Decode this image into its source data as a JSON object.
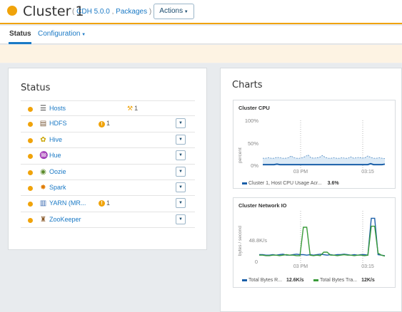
{
  "header": {
    "title": "Cluster 1",
    "subtitle_open": "(",
    "version": "CDH 5.0.0",
    "sep": " , ",
    "packaging": "Packages",
    "subtitle_close": " )",
    "actions_label": "Actions"
  },
  "tabs": {
    "status": "Status",
    "configuration": "Configuration"
  },
  "status_panel": {
    "title": "Status",
    "services": [
      {
        "name": "Hosts",
        "icon": "hosts-icon",
        "health": "1",
        "health_kind": "wrench-icon",
        "has_dropdown": false
      },
      {
        "name": "HDFS",
        "icon": "hdfs-icon",
        "health": "1",
        "health_kind": "warning-icon",
        "has_dropdown": true
      },
      {
        "name": "Hive",
        "icon": "hive-icon",
        "health": "",
        "health_kind": "",
        "has_dropdown": true
      },
      {
        "name": "Hue",
        "icon": "hue-icon",
        "health": "",
        "health_kind": "",
        "has_dropdown": true
      },
      {
        "name": "Oozie",
        "icon": "oozie-icon",
        "health": "",
        "health_kind": "",
        "has_dropdown": true
      },
      {
        "name": "Spark",
        "icon": "spark-icon",
        "health": "",
        "health_kind": "",
        "has_dropdown": true
      },
      {
        "name": "YARN (MR...",
        "icon": "yarn-icon",
        "health": "1",
        "health_kind": "warning-icon",
        "has_dropdown": true
      },
      {
        "name": "ZooKeeper",
        "icon": "zookeeper-icon",
        "health": "",
        "health_kind": "",
        "has_dropdown": true
      }
    ]
  },
  "charts_panel": {
    "title": "Charts",
    "cpu_chart": {
      "title": "Cluster CPU",
      "ylabel": "percent",
      "yticks": [
        "100%",
        "50%",
        "0%"
      ],
      "xticks": [
        "03 PM",
        "03:15"
      ],
      "legend": [
        {
          "label": "Cluster 1, Host CPU Usage Acr...",
          "value": "3.6%",
          "color": "#1a5fa8"
        }
      ]
    },
    "net_chart": {
      "title": "Cluster Network IO",
      "ylabel": "bytes / second",
      "yticks": [
        "48.8K/s",
        "0"
      ],
      "xticks": [
        "03 PM",
        "03:15"
      ],
      "legend": [
        {
          "label": "Total Bytes R...",
          "value": "12.6K/s",
          "color": "#1a5fa8"
        },
        {
          "label": "Total Bytes Tra...",
          "value": "12K/s",
          "color": "#3a9b3a"
        }
      ]
    }
  },
  "chart_data": [
    {
      "type": "area",
      "title": "Cluster CPU",
      "ylabel": "percent",
      "ylim": [
        0,
        100
      ],
      "x_tick_labels": [
        "03 PM",
        "03:15"
      ],
      "series": [
        {
          "name": "Cluster 1, Host CPU Usage Acr...",
          "values": [
            3,
            3,
            3,
            3,
            3,
            4,
            3,
            3,
            3,
            3,
            3,
            3,
            3,
            3,
            3,
            3,
            3,
            3,
            3,
            3,
            3,
            3,
            3,
            3,
            3,
            3,
            3,
            3,
            3,
            3,
            3,
            3,
            3,
            3,
            3,
            3,
            3,
            3,
            5,
            3,
            3,
            3,
            3,
            4
          ],
          "band_upper": [
            17,
            17,
            18,
            17,
            17,
            19,
            18,
            17,
            17,
            18,
            22,
            18,
            17,
            17,
            18,
            21,
            24,
            18,
            17,
            18,
            19,
            23,
            19,
            17,
            17,
            18,
            17,
            17,
            18,
            17,
            17,
            20,
            17,
            18,
            19,
            17,
            18,
            22,
            19,
            17,
            17,
            18,
            17,
            16
          ]
        }
      ]
    },
    {
      "type": "line",
      "title": "Cluster Network IO",
      "ylabel": "bytes / second",
      "ytick_label": "48.8K/s",
      "x_tick_labels": [
        "03 PM",
        "03:15"
      ],
      "series": [
        {
          "name": "Total Bytes R...",
          "values": [
            15,
            15,
            14,
            14,
            15,
            14,
            15,
            16,
            14,
            14,
            15,
            16,
            15,
            15,
            14,
            15,
            14,
            15,
            16,
            15,
            14,
            15,
            14,
            15,
            15,
            16,
            15,
            14,
            15,
            14,
            15,
            15,
            14,
            88,
            88,
            15,
            14,
            13
          ]
        },
        {
          "name": "Total Bytes Tra...",
          "values": [
            14,
            14,
            13,
            13,
            14,
            14,
            13,
            14,
            15,
            14,
            14,
            13,
            13,
            70,
            70,
            14,
            13,
            14,
            13,
            20,
            20,
            14,
            14,
            13,
            14,
            15,
            14,
            14,
            13,
            14,
            14,
            13,
            14,
            72,
            72,
            18,
            14,
            12
          ]
        }
      ]
    }
  ]
}
